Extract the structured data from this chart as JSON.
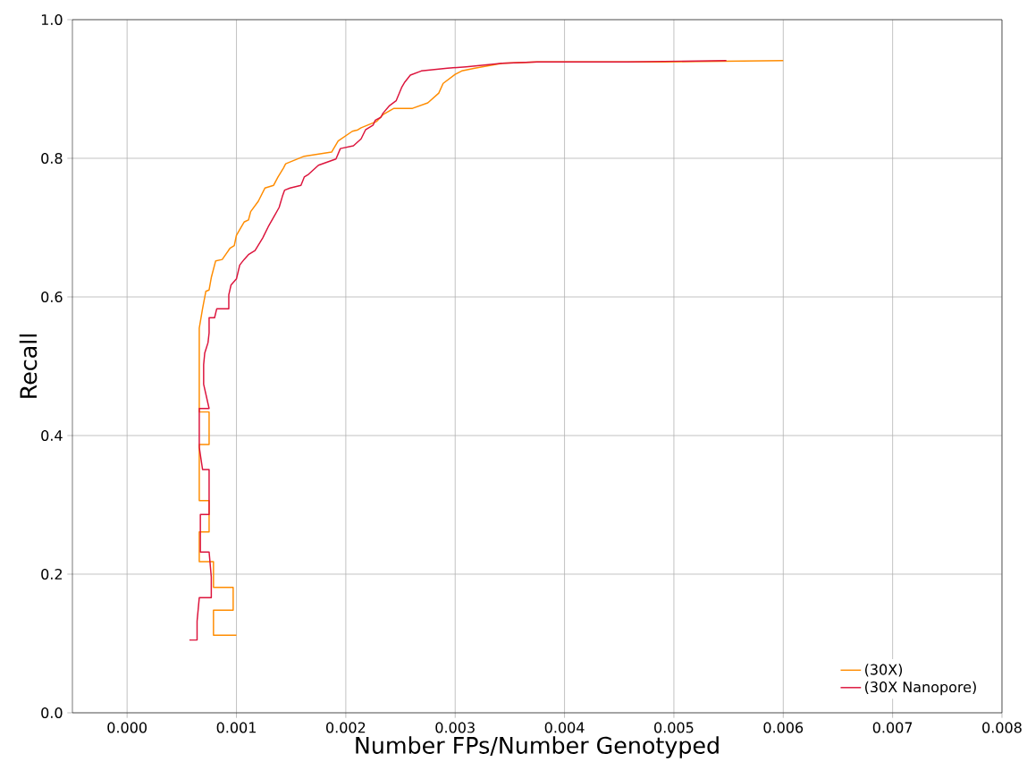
{
  "chart_data": {
    "type": "line",
    "xlabel": "Number FPs/Number Genotyped",
    "ylabel": "Recall",
    "xlim": [
      -0.0005,
      0.008
    ],
    "xticks": [
      {
        "value": 0,
        "label": "0.000"
      },
      {
        "value": 0.001,
        "label": "0.001"
      },
      {
        "value": 0.002,
        "label": "0.002"
      },
      {
        "value": 0.003,
        "label": "0.003"
      },
      {
        "value": 0.004,
        "label": "0.004"
      },
      {
        "value": 0.005,
        "label": "0.005"
      },
      {
        "value": 0.006,
        "label": "0.006"
      },
      {
        "value": 0.007,
        "label": "0.007"
      },
      {
        "value": 0.008,
        "label": "0.008"
      }
    ],
    "ylim": [
      0,
      1
    ],
    "yticks": [
      {
        "value": 0,
        "label": "0.0"
      },
      {
        "value": 0.2,
        "label": "0.2"
      },
      {
        "value": 0.4,
        "label": "0.4"
      },
      {
        "value": 0.6,
        "label": "0.6"
      },
      {
        "value": 0.8,
        "label": "0.8"
      },
      {
        "value": 1,
        "label": "1.0"
      }
    ],
    "grid": true,
    "legend": "bottom right",
    "series": [
      {
        "name": "(30X)",
        "color": "#ff8c00",
        "x": [
          0.001,
          0.00079,
          0.00079,
          0.00097,
          0.00097,
          0.00079,
          0.00079,
          0.00066,
          0.00066,
          0.00075,
          0.00075,
          0.00066,
          0.00066,
          0.00075,
          0.00075,
          0.00066,
          0.00066,
          0.00069,
          0.00072,
          0.00075,
          0.00077,
          0.00081,
          0.00087,
          0.00094,
          0.00098,
          0.001,
          0.00107,
          0.00111,
          0.00113,
          0.0012,
          0.00126,
          0.00134,
          0.00138,
          0.00143,
          0.00145,
          0.00162,
          0.00187,
          0.00193,
          0.00206,
          0.00211,
          0.00214,
          0.00228,
          0.00234,
          0.00244,
          0.00261,
          0.00275,
          0.00285,
          0.00289,
          0.003,
          0.00306,
          0.00318,
          0.00343,
          0.00375,
          0.0049,
          0.006
        ],
        "values": [
          0.112,
          0.112,
          0.148,
          0.148,
          0.181,
          0.181,
          0.218,
          0.218,
          0.261,
          0.261,
          0.306,
          0.306,
          0.387,
          0.387,
          0.434,
          0.434,
          0.555,
          0.583,
          0.608,
          0.61,
          0.628,
          0.652,
          0.654,
          0.67,
          0.674,
          0.689,
          0.708,
          0.711,
          0.723,
          0.738,
          0.757,
          0.761,
          0.773,
          0.786,
          0.792,
          0.803,
          0.809,
          0.825,
          0.839,
          0.841,
          0.844,
          0.853,
          0.863,
          0.872,
          0.872,
          0.88,
          0.894,
          0.908,
          0.921,
          0.926,
          0.93,
          0.937,
          0.939,
          0.939,
          0.941
        ]
      },
      {
        "name": "(30X Nanopore)",
        "color": "#dc143c",
        "x": [
          0.00057,
          0.00064,
          0.00064,
          0.00066,
          0.00077,
          0.00077,
          0.00075,
          0.00067,
          0.00067,
          0.00075,
          0.00075,
          0.00069,
          0.00066,
          0.00066,
          0.00075,
          0.0007,
          0.0007,
          0.00071,
          0.00074,
          0.00075,
          0.00075,
          0.0008,
          0.00082,
          0.00093,
          0.00093,
          0.00095,
          0.001,
          0.00103,
          0.00107,
          0.00111,
          0.00117,
          0.00124,
          0.00129,
          0.00134,
          0.00139,
          0.00142,
          0.00144,
          0.00149,
          0.00159,
          0.00162,
          0.00166,
          0.00175,
          0.00191,
          0.00195,
          0.00207,
          0.00214,
          0.00218,
          0.00225,
          0.00227,
          0.00232,
          0.00234,
          0.0024,
          0.00246,
          0.00251,
          0.00254,
          0.00259,
          0.00269,
          0.00293,
          0.0031,
          0.00343,
          0.00375,
          0.00457,
          0.00548
        ],
        "values": [
          0.105,
          0.105,
          0.132,
          0.166,
          0.166,
          0.196,
          0.232,
          0.232,
          0.286,
          0.286,
          0.351,
          0.351,
          0.383,
          0.439,
          0.439,
          0.474,
          0.502,
          0.519,
          0.534,
          0.548,
          0.57,
          0.57,
          0.583,
          0.583,
          0.603,
          0.617,
          0.626,
          0.646,
          0.654,
          0.661,
          0.667,
          0.685,
          0.701,
          0.715,
          0.729,
          0.745,
          0.754,
          0.757,
          0.761,
          0.773,
          0.777,
          0.79,
          0.799,
          0.814,
          0.818,
          0.828,
          0.841,
          0.848,
          0.855,
          0.859,
          0.865,
          0.876,
          0.883,
          0.902,
          0.91,
          0.92,
          0.926,
          0.93,
          0.932,
          0.937,
          0.939,
          0.939,
          0.941
        ]
      }
    ]
  }
}
